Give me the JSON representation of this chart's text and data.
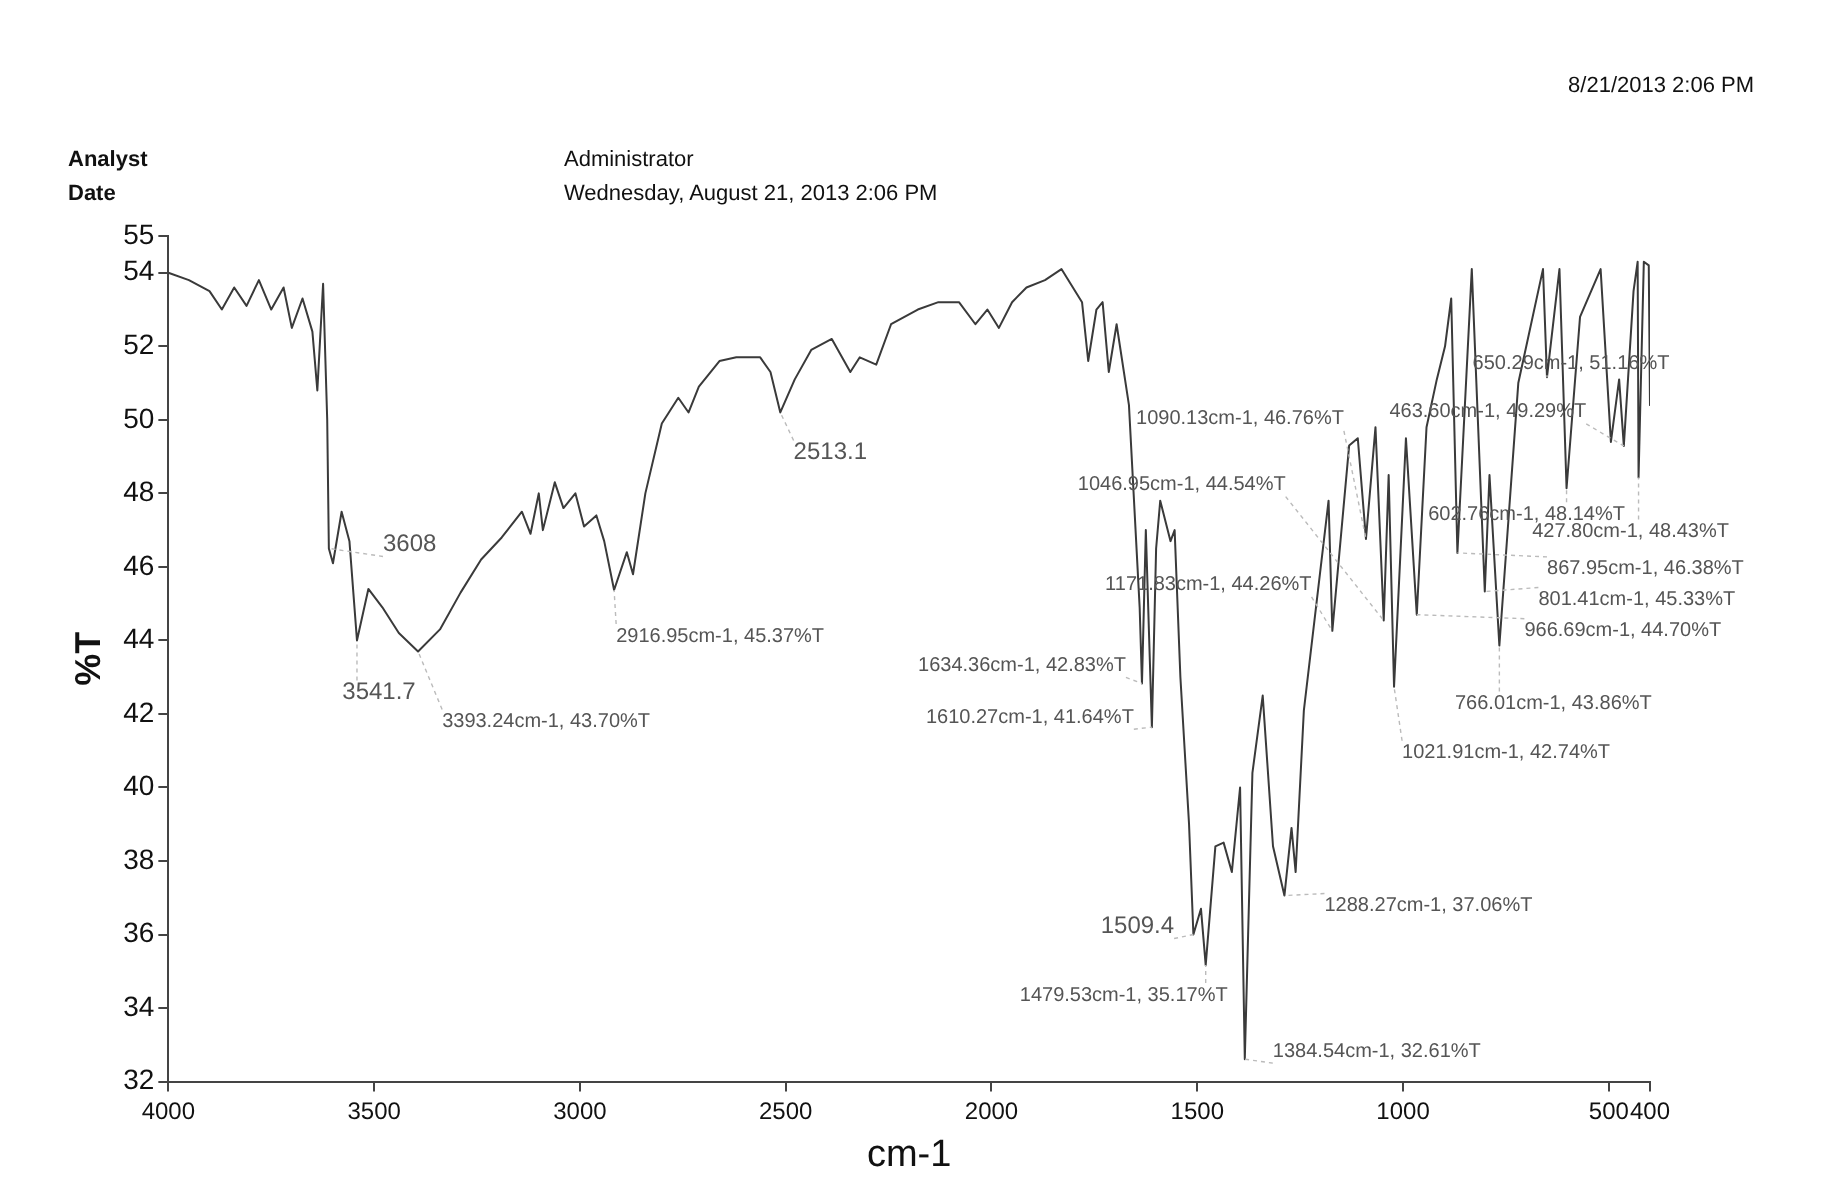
{
  "chart_data": {
    "type": "line",
    "xlabel": "cm-1",
    "ylabel": "%T",
    "xlim": [
      4000,
      400
    ],
    "xticks": [
      4000,
      3500,
      3000,
      2500,
      2000,
      1500,
      1000,
      500,
      400
    ],
    "ylim": [
      32,
      55
    ],
    "yticks": [
      32,
      34,
      36,
      38,
      40,
      42,
      44,
      46,
      48,
      50,
      52,
      54,
      55
    ],
    "grid": false,
    "legend": false,
    "marker": "none",
    "line_style": "solid",
    "series": [
      {
        "color": "#3a3a3a",
        "x": [
          4000,
          3950,
          3900,
          3870,
          3840,
          3810,
          3780,
          3750,
          3720,
          3700,
          3674,
          3650,
          3638,
          3624,
          3614,
          3610,
          3600,
          3579,
          3560,
          3541.7,
          3514,
          3480,
          3440,
          3393.24,
          3340,
          3290,
          3240,
          3190,
          3141,
          3120,
          3100,
          3090,
          3061,
          3040,
          3011,
          2990,
          2960,
          2941,
          2916.95,
          2886,
          2871,
          2841,
          2801,
          2761,
          2736,
          2711,
          2661,
          2620,
          2562,
          2537,
          2513.1,
          2478,
          2438,
          2388,
          2343,
          2320,
          2280,
          2244,
          2179,
          2129,
          2079,
          2039,
          2010,
          1982,
          1950,
          1915,
          1870,
          1830,
          1780,
          1765,
          1745,
          1730,
          1715,
          1696,
          1666,
          1640,
          1634.36,
          1625,
          1610.27,
          1600,
          1590,
          1565,
          1555,
          1541,
          1520,
          1509.4,
          1491,
          1479.53,
          1456,
          1436,
          1416,
          1396,
          1384.54,
          1366,
          1341,
          1316,
          1288.27,
          1271,
          1261,
          1241,
          1181,
          1171.83,
          1131,
          1110,
          1090.13,
          1067,
          1046.95,
          1035,
          1021.91,
          993,
          966.69,
          943,
          918,
          898,
          883,
          867.95,
          833,
          801.41,
          790,
          766.01,
          720,
          660,
          650.29,
          620,
          602.76,
          570,
          520,
          495,
          475,
          463.6,
          440,
          430,
          427.8,
          415,
          403,
          400
        ],
        "values": [
          54.0,
          53.8,
          53.5,
          53.0,
          53.6,
          53.1,
          53.8,
          53.0,
          53.6,
          52.5,
          53.3,
          52.4,
          50.8,
          53.7,
          50.0,
          46.5,
          46.1,
          47.5,
          46.7,
          44.0,
          45.4,
          44.9,
          44.2,
          43.7,
          44.3,
          45.3,
          46.2,
          46.8,
          47.5,
          46.9,
          48.0,
          47.0,
          48.3,
          47.6,
          48.0,
          47.1,
          47.4,
          46.7,
          45.37,
          46.4,
          45.8,
          48.0,
          49.9,
          50.6,
          50.2,
          50.9,
          51.6,
          51.7,
          51.7,
          51.3,
          50.2,
          51.1,
          51.9,
          52.2,
          51.3,
          51.7,
          51.5,
          52.6,
          53.0,
          53.2,
          53.2,
          52.6,
          53.0,
          52.5,
          53.2,
          53.6,
          53.8,
          54.1,
          53.2,
          51.6,
          53.0,
          53.2,
          51.3,
          52.6,
          50.4,
          44.9,
          42.83,
          47.0,
          41.64,
          46.5,
          47.8,
          46.7,
          47.0,
          43.0,
          39.0,
          36.0,
          36.7,
          35.17,
          38.4,
          38.5,
          37.7,
          40.0,
          32.61,
          40.4,
          42.5,
          38.4,
          37.06,
          38.9,
          37.7,
          42.1,
          47.8,
          44.26,
          49.3,
          49.5,
          46.76,
          49.8,
          44.54,
          48.5,
          42.74,
          49.5,
          44.7,
          49.8,
          51.1,
          52.0,
          53.3,
          46.38,
          54.1,
          45.33,
          48.5,
          43.86,
          51.0,
          54.1,
          51.16,
          54.1,
          48.14,
          52.8,
          54.1,
          49.4,
          51.1,
          49.29,
          53.5,
          54.3,
          48.43,
          54.3,
          54.2,
          50.4
        ]
      }
    ],
    "annotations": [
      "Analyst",
      "Administrator",
      "Date",
      "Wednesday, August 21, 2013 2:06 PM",
      "8/21/2013 2:06 PM",
      {
        "text": "3608",
        "x": 3608,
        "y": 46.5
      },
      {
        "text": "3541.7",
        "x": 3541.7,
        "y": 44.0
      },
      {
        "text": "3393.24cm-1, 43.70%T",
        "x": 3393.24,
        "y": 43.7
      },
      {
        "text": "2916.95cm-1, 45.37%T",
        "x": 2916.95,
        "y": 45.37
      },
      {
        "text": "2513.1",
        "x": 2513.1,
        "y": 50.2
      },
      {
        "text": "1634.36cm-1, 42.83%T",
        "x": 1634.36,
        "y": 42.83
      },
      {
        "text": "1610.27cm-1, 41.64%T",
        "x": 1610.27,
        "y": 41.64
      },
      {
        "text": "1509.4",
        "x": 1509.4,
        "y": 36.0
      },
      {
        "text": "1479.53cm-1, 35.17%T",
        "x": 1479.53,
        "y": 35.17
      },
      {
        "text": "1384.54cm-1, 32.61%T",
        "x": 1384.54,
        "y": 32.61
      },
      {
        "text": "1288.27cm-1, 37.06%T",
        "x": 1288.27,
        "y": 37.06
      },
      {
        "text": "1171.83cm-1, 44.26%T",
        "x": 1171.83,
        "y": 44.26
      },
      {
        "text": "1046.95cm-1, 44.54%T",
        "x": 1046.95,
        "y": 44.54
      },
      {
        "text": "1090.13cm-1, 46.76%T",
        "x": 1090.13,
        "y": 46.76
      },
      {
        "text": "1021.91cm-1, 42.74%T",
        "x": 1021.91,
        "y": 42.74
      },
      {
        "text": "966.69cm-1, 44.70%T",
        "x": 966.69,
        "y": 44.7
      },
      {
        "text": "867.95cm-1, 46.38%T",
        "x": 867.95,
        "y": 46.38
      },
      {
        "text": "801.41cm-1, 45.33%T",
        "x": 801.41,
        "y": 45.33
      },
      {
        "text": "766.01cm-1, 43.86%T",
        "x": 766.01,
        "y": 43.86
      },
      {
        "text": "650.29cm-1, 51.16%T",
        "x": 650.29,
        "y": 51.16
      },
      {
        "text": "602.76cm-1, 48.14%T",
        "x": 602.76,
        "y": 48.14
      },
      {
        "text": "463.60cm-1, 49.29%T",
        "x": 463.6,
        "y": 49.29
      },
      {
        "text": "427.80cm-1, 48.43%T",
        "x": 427.8,
        "y": 48.43
      }
    ]
  }
}
